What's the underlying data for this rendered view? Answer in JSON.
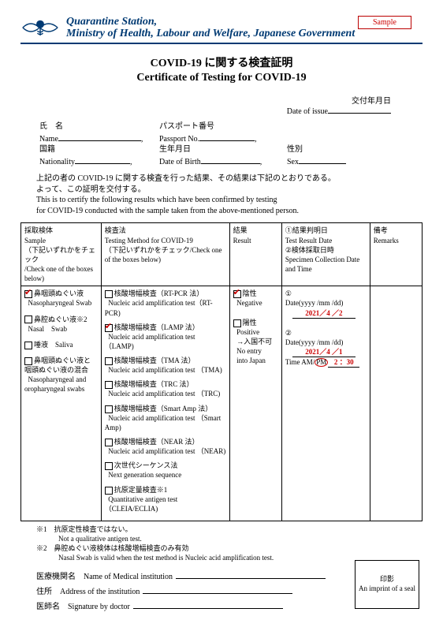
{
  "sample_badge": "Sample",
  "header": {
    "line1": "Quarantine Station,",
    "line2": "Ministry of Health, Labour and Welfare, Japanese Government",
    "logo_color": "#003a73"
  },
  "title": {
    "jp": "COVID-19 に関する検査証明",
    "en": "Certificate of Testing for COVID-19"
  },
  "date_issue": {
    "jp": "交付年月日",
    "en": "Date of issue"
  },
  "personal": {
    "name_jp": "氏　名",
    "name_en": "Name",
    "passport_jp": "パスポート番号",
    "passport_en": "Passport No.",
    "nat_jp": "国籍",
    "nat_en": "Nationality",
    "dob_jp": "生年月日",
    "dob_en": "Date of Birth",
    "sex_jp": "性別",
    "sex_en": "Sex"
  },
  "para": {
    "jp1": "上記の者の COVID-19 に関する検査を行った結果、その結果は下記のとおりである。",
    "jp2": "よって、この証明を交付する。",
    "en1": "This is to certify the following results which have been confirmed by testing",
    "en2": "for COVID-19 conducted with the sample taken from the above-mentioned person."
  },
  "table": {
    "col1": {
      "jp": "採取検体",
      "en1": "Sample",
      "jp2": "（下記いずれかをチェック",
      "en2": "/Check one of the boxes below)"
    },
    "col2": {
      "jp": "検査法",
      "en1": "Testing Method for COVID-19",
      "jp2": "（下記いずれかをチェック/Check one of the boxes below)"
    },
    "col3": {
      "jp": "結果",
      "en": "Result"
    },
    "col4": {
      "jp1": "①結果判明日",
      "en1": "Test Result Date",
      "jp2": "②検体採取日時",
      "en2": "Specimen Collection Date and Time"
    },
    "col5": {
      "jp": "備考",
      "en": "Remarks"
    },
    "samples": [
      {
        "jp": "鼻咽頭ぬぐい液",
        "en": "Nasopharyngeal Swab",
        "checked": true
      },
      {
        "jp": "鼻腔ぬぐい液※2",
        "en": "Nasal　Swab",
        "checked": false
      },
      {
        "jp": "唾液　Saliva",
        "en": "",
        "checked": false
      },
      {
        "jp": "鼻咽頭ぬぐい液と咽頭ぬぐい液の混合",
        "en": "Nasopharyngeal and oropharyngeal swabs",
        "checked": false
      }
    ],
    "methods": [
      {
        "jp": "核酸増幅検査（RT-PCR 法）",
        "en": "Nucleic acid amplification test（RT-PCR)",
        "checked": false
      },
      {
        "jp": "核酸増幅検査（LAMP 法）",
        "en": "Nucleic acid amplification test （LAMP)",
        "checked": true
      },
      {
        "jp": "核酸増幅検査（TMA 法）",
        "en": "Nucleic acid amplification test （TMA)",
        "checked": false
      },
      {
        "jp": "核酸増幅検査（TRC 法）",
        "en": "Nucleic acid amplification test （TRC)",
        "checked": false
      },
      {
        "jp": "核酸増幅検査（Smart Amp 法）",
        "en": "Nucleic acid amplification test （Smart Amp)",
        "checked": false
      },
      {
        "jp": "核酸増幅検査（NEAR 法）",
        "en": "Nucleic acid amplification test （NEAR)",
        "checked": false
      },
      {
        "jp": "次世代シーケンス法",
        "en": "Next generation sequence",
        "checked": false
      },
      {
        "jp": "抗原定量検査※1",
        "en": "Quantitative antigen test（CLEIA/ECLIA)",
        "checked": false
      }
    ],
    "result": {
      "neg_jp": "陰性",
      "neg_en": "Negative",
      "neg_checked": true,
      "pos_jp": "陽性",
      "pos_en": "Positive",
      "pos_sub_jp": "→入国不可",
      "pos_sub_en1": "No entry",
      "pos_sub_en2": "into Japan",
      "pos_checked": false
    },
    "dates": {
      "label1": "①",
      "dateformat": "Date(yyyy /mm /dd)",
      "date1": "2021／4 ／2",
      "label2": "②",
      "date2": "2021／4 ／1",
      "time_label": "Time AM/",
      "pm": "PM",
      "time_val": " 2 ：30"
    }
  },
  "notes": {
    "n1_jp": "※1　抗原定性検査ではない。",
    "n1_en": "Not a qualitative antigen test.",
    "n2_jp": "※2　鼻腔ぬぐい液検体は核酸増幅検査のみ有効",
    "n2_en": "Nasal Swab is valid when the test method is Nucleic acid amplification test."
  },
  "bottom": {
    "inst": "医療機関名　Name of Medical institution",
    "addr": "住所　Address of the institution",
    "sign": "医師名　Signature by doctor"
  },
  "seal": {
    "jp": "印影",
    "en": "An imprint of a seal"
  }
}
